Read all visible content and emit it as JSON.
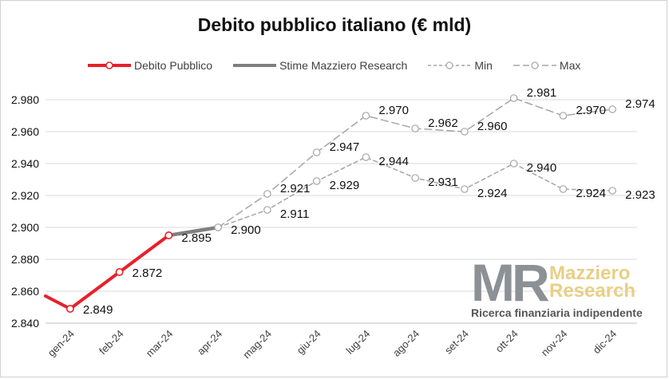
{
  "chart_data": {
    "type": "line",
    "title": "Debito pubblico italiano (€ mld)",
    "categories": [
      "gen-24",
      "feb-24",
      "mar-24",
      "apr-24",
      "mag-24",
      "giu-24",
      "lug-24",
      "ago-24",
      "set-24",
      "ott-24",
      "nov-24",
      "dic-24"
    ],
    "ylim": [
      2840,
      2980
    ],
    "yticks": [
      2840,
      2860,
      2880,
      2900,
      2920,
      2940,
      2960,
      2980
    ],
    "ytick_labels": [
      "2.840",
      "2.860",
      "2.880",
      "2.900",
      "2.920",
      "2.940",
      "2.960",
      "2.980"
    ],
    "grid": true,
    "legend_position": "top",
    "series": [
      {
        "name": "Debito Pubblico",
        "color": "#e8202a",
        "values": [
          2849,
          2872,
          2895,
          null,
          null,
          null,
          null,
          null,
          null,
          null,
          null,
          null
        ],
        "labels": [
          "2.849",
          "2.872",
          "",
          "",
          "",
          "",
          "",
          "",
          "",
          "",
          "",
          ""
        ],
        "lead_in_value": 2857
      },
      {
        "name": "Stime Mazziero Research",
        "color": "#7f7f7f",
        "values": [
          null,
          null,
          2895,
          2900,
          null,
          null,
          null,
          null,
          null,
          null,
          null,
          null
        ],
        "labels": [
          "",
          "",
          "2.895",
          "2.900",
          "",
          "",
          "",
          "",
          "",
          "",
          "",
          ""
        ]
      },
      {
        "name": "Min",
        "color": "#a6a6a6",
        "values": [
          null,
          null,
          null,
          2900,
          2911,
          2929,
          2944,
          2931,
          2924,
          2940,
          2924,
          2923
        ],
        "labels": [
          "",
          "",
          "",
          "",
          "2.911",
          "2.929",
          "2.944",
          "2.931",
          "2.924",
          "2.940",
          "2.924",
          "2.923"
        ]
      },
      {
        "name": "Max",
        "color": "#a6a6a6",
        "values": [
          null,
          null,
          null,
          2900,
          2921,
          2947,
          2970,
          2962,
          2960,
          2981,
          2970,
          2974
        ],
        "labels": [
          "",
          "",
          "",
          "",
          "2.921",
          "2.947",
          "2.970",
          "2.962",
          "2.960",
          "2.981",
          "2.970",
          "2.974"
        ]
      }
    ]
  },
  "legend": {
    "debito": "Debito Pubblico",
    "stime": "Stime Mazziero Research",
    "min": "Min",
    "max": "Max"
  },
  "logo": {
    "mark": "MR",
    "name_line1": "Mazziero",
    "name_line2": "Research",
    "tagline": "Ricerca finanziaria indipendente"
  }
}
